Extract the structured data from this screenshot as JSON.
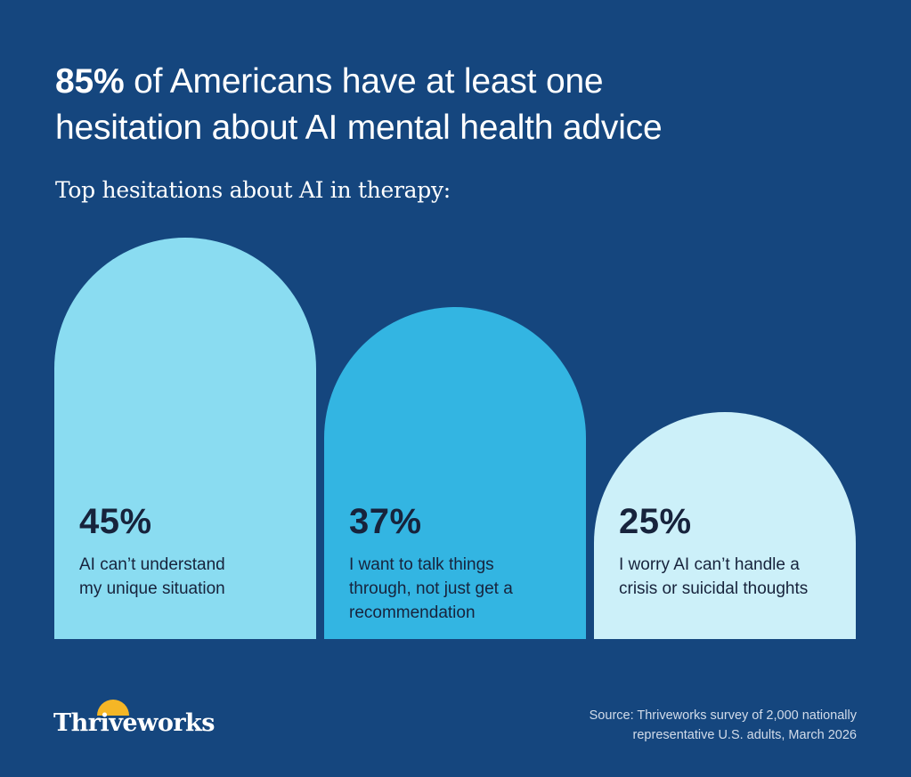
{
  "title": {
    "highlight": "85%",
    "line1_rest": " of Americans have at least one",
    "line2": "hesitation about AI mental health advice"
  },
  "subtitle": "Top hesitations about AI in therapy:",
  "chart_data": {
    "type": "bar",
    "title": "85% of Americans have at least one hesitation about AI mental health advice",
    "subtitle": "Top hesitations about AI in therapy:",
    "unit": "%",
    "categories": [
      "AI can’t understand my unique situation",
      "I want to talk things through, not just get a recommendation",
      "I worry AI can’t handle a crisis or suicidal thoughts"
    ],
    "values": [
      45,
      37,
      25
    ],
    "bars": [
      {
        "value": 45,
        "label": "45%",
        "desc_lines": [
          "AI can’t understand",
          "my unique situation"
        ],
        "color": "#8adcf1"
      },
      {
        "value": 37,
        "label": "37%",
        "desc_lines": [
          "I want to talk things",
          "through, not just get a",
          "recommendation"
        ],
        "color": "#33b5e2"
      },
      {
        "value": 25,
        "label": "25%",
        "desc_lines": [
          "I worry AI can’t handle a",
          "crisis or suicidal thoughts"
        ],
        "color": "#ccf0f9"
      }
    ]
  },
  "logo": {
    "text": "Thriveworks",
    "sun_color": "#f5b626"
  },
  "source": {
    "line1": "Source: Thriveworks survey of 2,000 nationally",
    "line2": "representative U.S. adults, March 2026"
  },
  "colors": {
    "background": "#15467e",
    "card_text": "#17233c"
  }
}
